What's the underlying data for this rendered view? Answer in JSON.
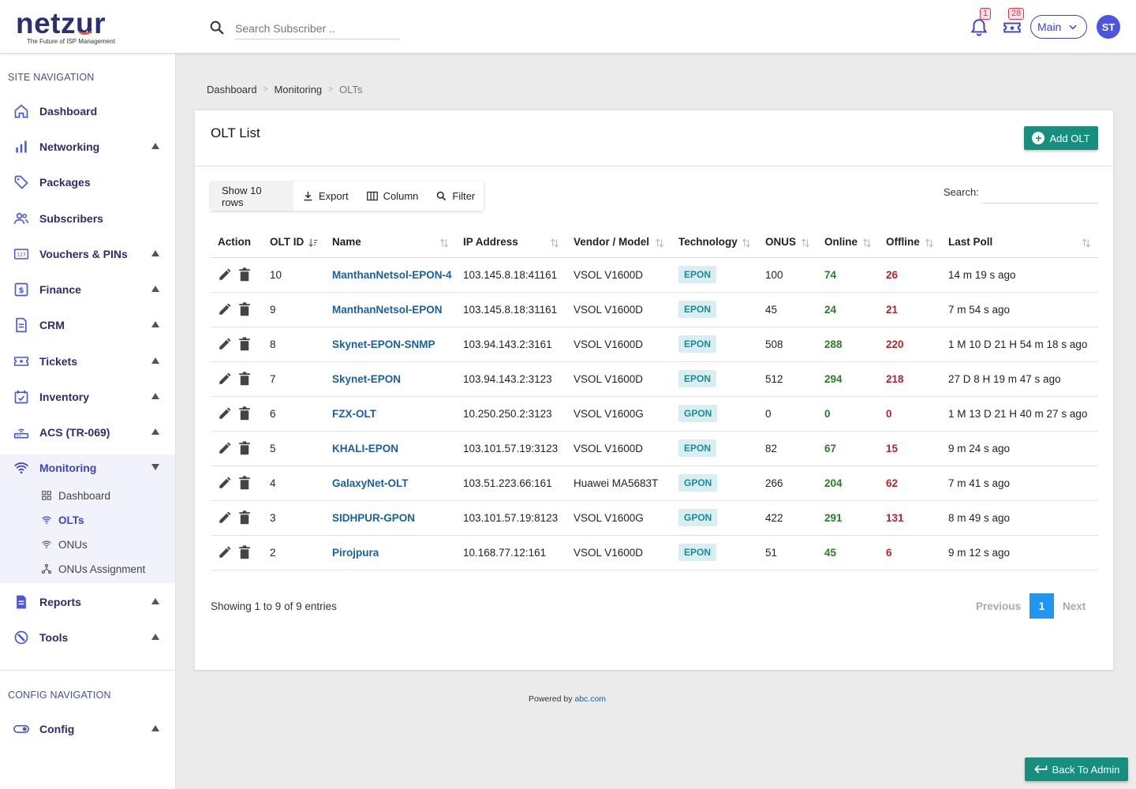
{
  "brand": {
    "name_part1": "netz",
    "name_part2": "u",
    "name_part3": "r",
    "tagline": "The Future of ISP Management"
  },
  "header": {
    "search_placeholder": "Search Subscriber ..",
    "notifications_count": "1",
    "tickets_count": "28",
    "main_select": "Main",
    "avatar_initials": "ST"
  },
  "sidebar": {
    "site_nav_title": "SITE NAVIGATION",
    "items": [
      {
        "label": "Dashboard",
        "icon": "home-icon"
      },
      {
        "label": "Networking",
        "icon": "bar-chart-icon"
      },
      {
        "label": "Packages",
        "icon": "tag-icon"
      },
      {
        "label": "Subscribers",
        "icon": "users-icon"
      },
      {
        "label": "Vouchers & PINs",
        "icon": "voucher-icon"
      },
      {
        "label": "Finance",
        "icon": "dollar-icon"
      },
      {
        "label": "CRM",
        "icon": "document-icon"
      },
      {
        "label": "Tickets",
        "icon": "ticket-icon"
      },
      {
        "label": "Inventory",
        "icon": "calendar-check-icon"
      },
      {
        "label": "ACS (TR-069)",
        "icon": "router-icon"
      },
      {
        "label": "Monitoring",
        "icon": "signal-icon"
      },
      {
        "label": "Reports",
        "icon": "report-icon"
      },
      {
        "label": "Tools",
        "icon": "wrench-icon"
      }
    ],
    "monitoring_sub": [
      {
        "label": "Dashboard",
        "icon": "grid-icon"
      },
      {
        "label": "OLTs",
        "icon": "wifi-icon"
      },
      {
        "label": "ONUs",
        "icon": "wifi-icon"
      },
      {
        "label": "ONUs Assignment",
        "icon": "hierarchy-icon"
      }
    ],
    "config_nav_title": "CONFIG NAVIGATION",
    "config_items": [
      {
        "label": "Config",
        "icon": "toggle-icon"
      }
    ]
  },
  "breadcrumb": [
    "Dashboard",
    "Monitoring",
    "OLTs"
  ],
  "card": {
    "title": "OLT List",
    "add_button": "Add OLT",
    "toolbar": {
      "rows": "Show 10 rows",
      "export": "Export",
      "column": "Column",
      "filter": "Filter"
    },
    "search_label": "Search:"
  },
  "table": {
    "columns": [
      "Action",
      "OLT ID",
      "Name",
      "IP Address",
      "Vendor / Model",
      "Technology",
      "ONUS",
      "Online",
      "Offline",
      "Last Poll"
    ],
    "rows": [
      {
        "id": "10",
        "name": "ManthanNetsol-EPON-4",
        "ip": "103.145.8.18:41161",
        "vendor": "VSOL V1600D",
        "tech": "EPON",
        "onus": "100",
        "online": "74",
        "offline": "26",
        "last_poll": "14 m 19 s ago"
      },
      {
        "id": "9",
        "name": "ManthanNetsol-EPON",
        "ip": "103.145.8.18:31161",
        "vendor": "VSOL V1600D",
        "tech": "EPON",
        "onus": "45",
        "online": "24",
        "offline": "21",
        "last_poll": "7 m 54 s ago"
      },
      {
        "id": "8",
        "name": "Skynet-EPON-SNMP",
        "ip": "103.94.143.2:3161",
        "vendor": "VSOL V1600D",
        "tech": "EPON",
        "onus": "508",
        "online": "288",
        "offline": "220",
        "last_poll": "1 M 10 D 21 H 54 m 18 s ago"
      },
      {
        "id": "7",
        "name": "Skynet-EPON",
        "ip": "103.94.143.2:3123",
        "vendor": "VSOL V1600D",
        "tech": "EPON",
        "onus": "512",
        "online": "294",
        "offline": "218",
        "last_poll": "27 D 8 H 19 m 47 s ago"
      },
      {
        "id": "6",
        "name": "FZX-OLT",
        "ip": "10.250.250.2:3123",
        "vendor": "VSOL V1600G",
        "tech": "GPON",
        "onus": "0",
        "online": "0",
        "offline": "0",
        "last_poll": "1 M 13 D 21 H 40 m 27 s ago"
      },
      {
        "id": "5",
        "name": "KHALI-EPON",
        "ip": "103.101.57.19:3123",
        "vendor": "VSOL V1600D",
        "tech": "EPON",
        "onus": "82",
        "online": "67",
        "offline": "15",
        "last_poll": "9 m 24 s ago"
      },
      {
        "id": "4",
        "name": "GalaxyNet-OLT",
        "ip": "103.51.223.66:161",
        "vendor": "Huawei MA5683T",
        "tech": "GPON",
        "onus": "266",
        "online": "204",
        "offline": "62",
        "last_poll": "7 m 41 s ago"
      },
      {
        "id": "3",
        "name": "SIDHPUR-GPON",
        "ip": "103.101.57.19:8123",
        "vendor": "VSOL V1600G",
        "tech": "GPON",
        "onus": "422",
        "online": "291",
        "offline": "131",
        "last_poll": "8 m 49 s ago"
      },
      {
        "id": "2",
        "name": "Pirojpura",
        "ip": "10.168.77.12:161",
        "vendor": "VSOL V1600D",
        "tech": "EPON",
        "onus": "51",
        "online": "45",
        "offline": "6",
        "last_poll": "9 m 12 s ago"
      }
    ]
  },
  "pagination": {
    "summary": "Showing 1 to 9 of 9 entries",
    "previous": "Previous",
    "current": "1",
    "next": "Next"
  },
  "footer": {
    "powered_by": "Powered by",
    "link": "abc.com"
  },
  "back_button": "Back To Admin",
  "colors": {
    "accent": "#3b44c8",
    "teal": "#188f7e",
    "online": "#2b7a2b",
    "offline": "#b3252a",
    "link": "#1c5fa0"
  }
}
